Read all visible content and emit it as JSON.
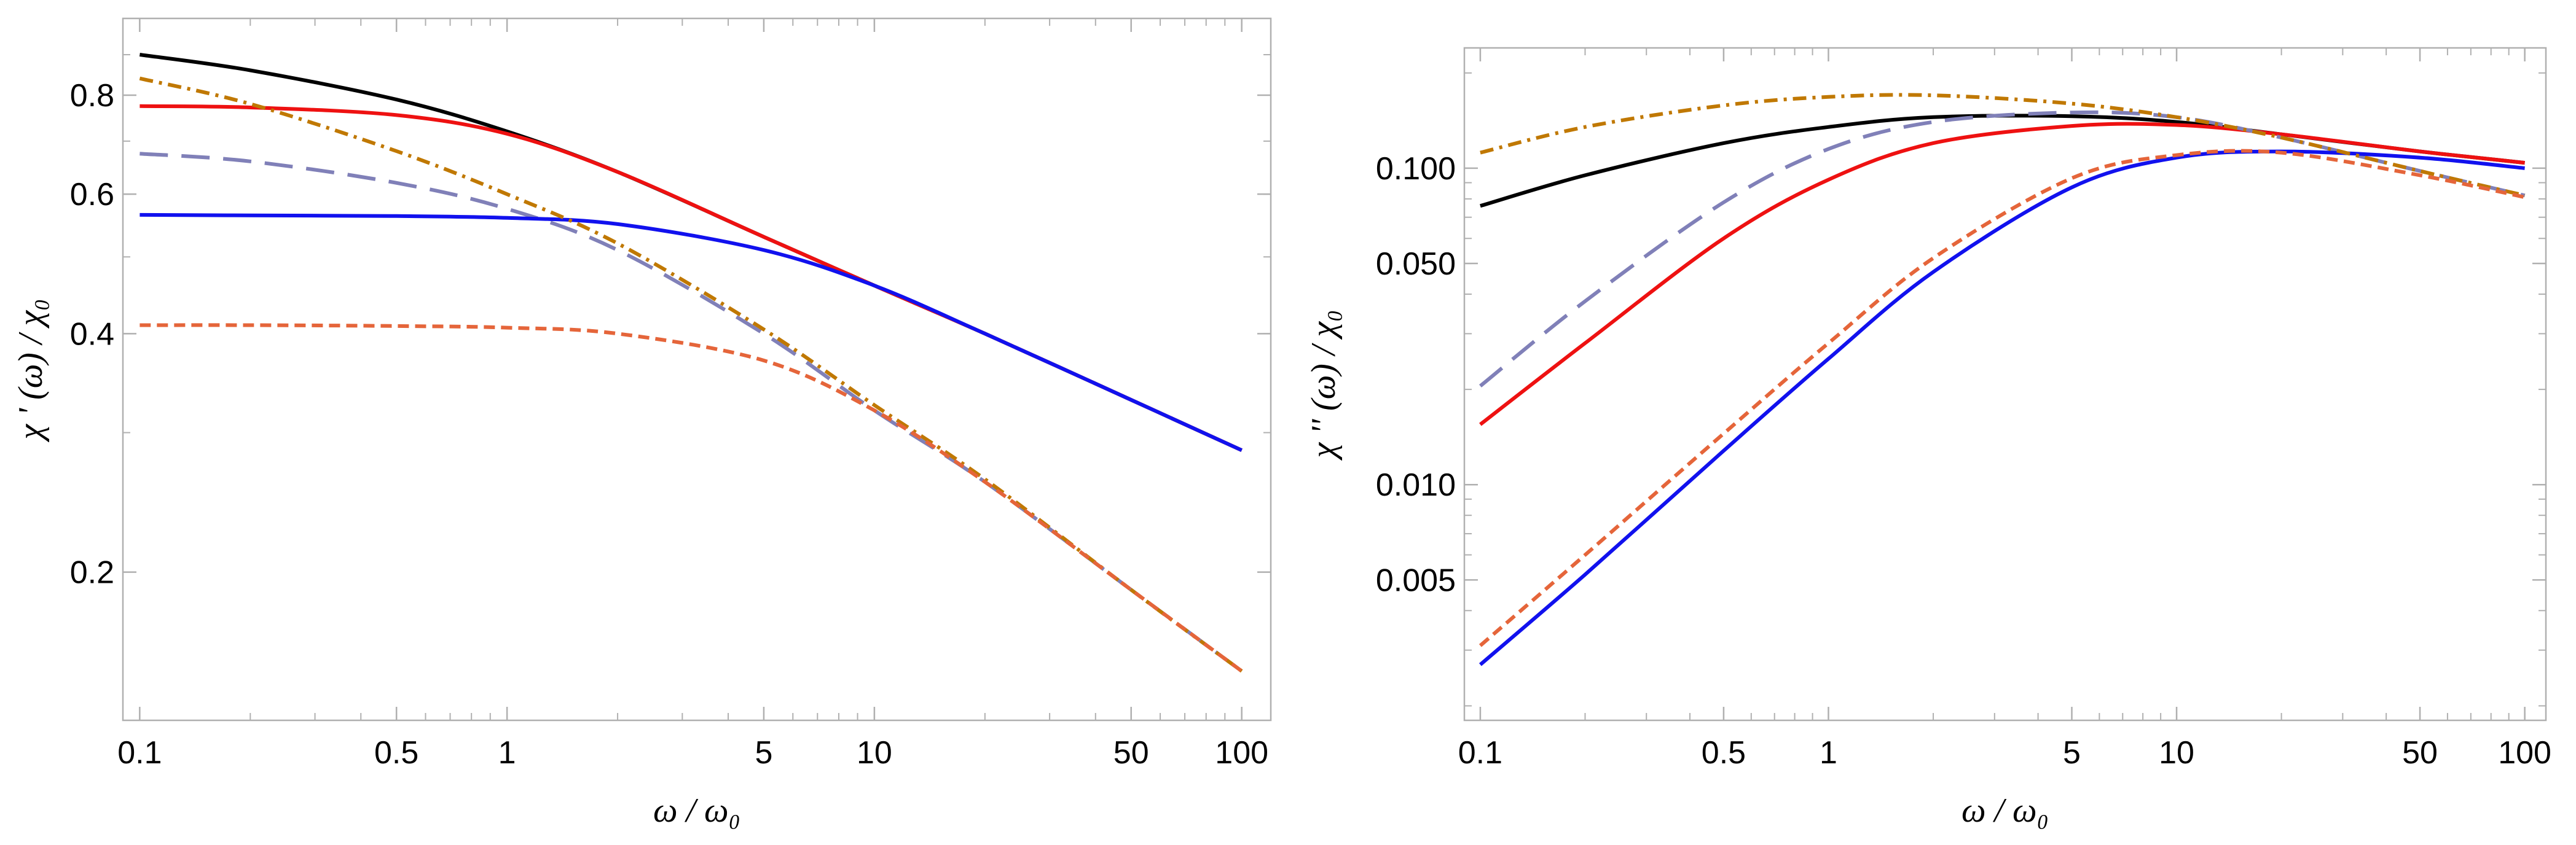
{
  "colors": {
    "black": "#000000",
    "red": "#ee1111",
    "lavender": "#8080b8",
    "blue": "#1111ee",
    "brown": "#c07800",
    "orange": "#e5653a",
    "frame": "#b0b0b0"
  },
  "chart_data": [
    {
      "type": "line",
      "panel": "left",
      "xscale": "log",
      "yscale": "log",
      "xlim": [
        0.09,
        120
      ],
      "ylim": [
        0.13,
        1.0
      ],
      "xlabel": "ω / ω₀",
      "ylabel": "χ ' (ω) / χ₀",
      "xticks": [
        {
          "v": 0.1,
          "label": "0.1"
        },
        {
          "v": 0.5,
          "label": "0.5"
        },
        {
          "v": 1,
          "label": "1"
        },
        {
          "v": 5,
          "label": "5"
        },
        {
          "v": 10,
          "label": "10"
        },
        {
          "v": 50,
          "label": "50"
        },
        {
          "v": 100,
          "label": "100"
        }
      ],
      "yticks": [
        {
          "v": 0.2,
          "label": "0.2"
        },
        {
          "v": 0.4,
          "label": "0.4"
        },
        {
          "v": 0.6,
          "label": "0.6"
        },
        {
          "v": 0.8,
          "label": "0.8"
        }
      ],
      "series": [
        {
          "name": "black-solid",
          "color": "black",
          "dash": "none",
          "x": [
            0.1,
            0.2,
            0.5,
            1,
            2,
            5,
            10,
            20,
            50,
            100
          ],
          "y": [
            0.9,
            0.86,
            0.79,
            0.72,
            0.64,
            0.53,
            0.46,
            0.4,
            0.33,
            0.285
          ]
        },
        {
          "name": "red-solid",
          "color": "red",
          "dash": "none",
          "x": [
            0.1,
            0.2,
            0.5,
            1,
            2,
            5,
            10,
            20,
            50,
            100
          ],
          "y": [
            0.775,
            0.772,
            0.755,
            0.715,
            0.64,
            0.53,
            0.46,
            0.4,
            0.33,
            0.285
          ]
        },
        {
          "name": "lavender-dashed",
          "color": "lavender",
          "dash": "long",
          "x": [
            0.1,
            0.2,
            0.5,
            1,
            2,
            5,
            10,
            20,
            50,
            100
          ],
          "y": [
            0.675,
            0.66,
            0.62,
            0.575,
            0.51,
            0.4,
            0.32,
            0.26,
            0.19,
            0.15
          ]
        },
        {
          "name": "blue-solid",
          "color": "blue",
          "dash": "none",
          "x": [
            0.1,
            0.2,
            0.5,
            1,
            2,
            5,
            10,
            20,
            50,
            100
          ],
          "y": [
            0.565,
            0.564,
            0.563,
            0.56,
            0.55,
            0.51,
            0.46,
            0.4,
            0.33,
            0.285
          ]
        },
        {
          "name": "brown-dashdot",
          "color": "brown",
          "dash": "dashdot",
          "x": [
            0.1,
            0.2,
            0.5,
            1,
            2,
            5,
            10,
            20,
            50,
            100
          ],
          "y": [
            0.84,
            0.78,
            0.68,
            0.6,
            0.52,
            0.405,
            0.325,
            0.262,
            0.19,
            0.15
          ]
        },
        {
          "name": "orange-dashed",
          "color": "orange",
          "dash": "short",
          "x": [
            0.1,
            0.2,
            0.5,
            1,
            2,
            5,
            10,
            20,
            50,
            100
          ],
          "y": [
            0.41,
            0.41,
            0.409,
            0.407,
            0.4,
            0.37,
            0.32,
            0.26,
            0.19,
            0.15
          ]
        }
      ]
    },
    {
      "type": "line",
      "panel": "right",
      "xscale": "log",
      "yscale": "log",
      "xlim": [
        0.09,
        115
      ],
      "ylim": [
        0.0018,
        0.24
      ],
      "xlabel": "ω / ω₀",
      "ylabel": "χ '' (ω) / χ₀",
      "xticks": [
        {
          "v": 0.1,
          "label": "0.1"
        },
        {
          "v": 0.5,
          "label": "0.5"
        },
        {
          "v": 1,
          "label": "1"
        },
        {
          "v": 5,
          "label": "5"
        },
        {
          "v": 10,
          "label": "10"
        },
        {
          "v": 50,
          "label": "50"
        },
        {
          "v": 100,
          "label": "100"
        }
      ],
      "yticks": [
        {
          "v": 0.005,
          "label": "0.005"
        },
        {
          "v": 0.01,
          "label": "0.010"
        },
        {
          "v": 0.05,
          "label": "0.050"
        },
        {
          "v": 0.1,
          "label": "0.100"
        }
      ],
      "series": [
        {
          "name": "black-solid",
          "color": "black",
          "dash": "none",
          "x": [
            0.1,
            0.2,
            0.5,
            1,
            2,
            5,
            10,
            20,
            50,
            100
          ],
          "y": [
            0.076,
            0.095,
            0.12,
            0.135,
            0.145,
            0.146,
            0.14,
            0.128,
            0.113,
            0.104
          ]
        },
        {
          "name": "red-solid",
          "color": "red",
          "dash": "none",
          "x": [
            0.1,
            0.2,
            0.5,
            1,
            2,
            5,
            10,
            20,
            50,
            100
          ],
          "y": [
            0.0155,
            0.028,
            0.06,
            0.092,
            0.12,
            0.136,
            0.137,
            0.128,
            0.113,
            0.104
          ]
        },
        {
          "name": "lavender-dashed",
          "color": "lavender",
          "dash": "long",
          "x": [
            0.1,
            0.2,
            0.5,
            1,
            2,
            5,
            10,
            20,
            50,
            100
          ],
          "y": [
            0.0205,
            0.038,
            0.078,
            0.115,
            0.14,
            0.15,
            0.145,
            0.125,
            0.098,
            0.082
          ]
        },
        {
          "name": "blue-solid",
          "color": "blue",
          "dash": "none",
          "x": [
            0.1,
            0.2,
            0.5,
            1,
            2,
            5,
            10,
            20,
            50,
            100
          ],
          "y": [
            0.0027,
            0.0052,
            0.0128,
            0.025,
            0.047,
            0.087,
            0.108,
            0.113,
            0.108,
            0.1
          ]
        },
        {
          "name": "brown-dashdot",
          "color": "brown",
          "dash": "dashdot",
          "x": [
            0.1,
            0.2,
            0.5,
            1,
            2,
            5,
            10,
            20,
            50,
            100
          ],
          "y": [
            0.112,
            0.135,
            0.158,
            0.168,
            0.17,
            0.16,
            0.145,
            0.125,
            0.098,
            0.082
          ]
        },
        {
          "name": "orange-dashed",
          "color": "orange",
          "dash": "short",
          "x": [
            0.1,
            0.2,
            0.5,
            1,
            2,
            5,
            10,
            20,
            50,
            100
          ],
          "y": [
            0.0031,
            0.006,
            0.0145,
            0.028,
            0.052,
            0.093,
            0.11,
            0.112,
            0.095,
            0.081
          ]
        }
      ]
    }
  ]
}
